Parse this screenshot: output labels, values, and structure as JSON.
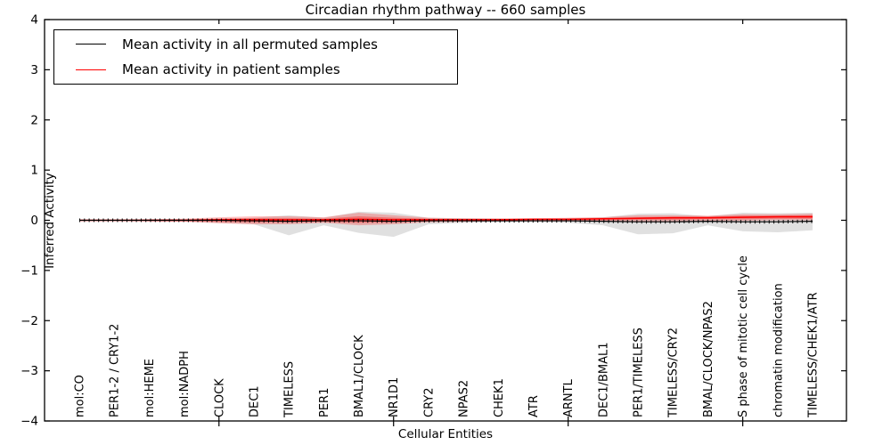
{
  "chart_data": {
    "type": "line",
    "title": "Circadian rhythm pathway -- 660 samples",
    "xlabel": "Cellular Entities",
    "ylabel": "Inferred Activity",
    "ylim": [
      -4,
      4
    ],
    "grid": false,
    "yticks": [
      {
        "value": 4,
        "label": "4"
      },
      {
        "value": 3,
        "label": "3"
      },
      {
        "value": 2,
        "label": "2"
      },
      {
        "value": 1,
        "label": "1"
      },
      {
        "value": 0,
        "label": "0"
      },
      {
        "value": -1,
        "label": "−1"
      },
      {
        "value": -2,
        "label": "−2"
      },
      {
        "value": -3,
        "label": "−3"
      },
      {
        "value": -4,
        "label": "−4"
      }
    ],
    "categories": [
      "mol:CO",
      "PER1-2 / CRY1-2",
      "mol:HEME",
      "mol:NADPH",
      "CLOCK",
      "DEC1",
      "TIMELESS",
      "PER1",
      "BMAL1/CLOCK",
      "NR1D1",
      "CRY2",
      "NPAS2",
      "CHEK1",
      "ATR",
      "ARNTL",
      "DEC1/BMAL1",
      "PER1/TIMELESS",
      "TIMELESS/CRY2",
      "BMAL/CLOCK/NPAS2",
      "S phase of mitotic cell cycle",
      "chromatin modification",
      "TIMELESS/CHEK1/ATR"
    ],
    "x_major_tick_indices": [
      4,
      9,
      14,
      19
    ],
    "series": [
      {
        "name": "Mean activity in all permuted samples",
        "color": "#000000",
        "values": [
          0,
          0,
          0,
          0,
          0,
          -0.01,
          -0.02,
          -0.01,
          -0.01,
          -0.02,
          -0.01,
          -0.01,
          -0.01,
          -0.01,
          -0.01,
          -0.02,
          -0.03,
          -0.03,
          -0.02,
          -0.03,
          -0.03,
          -0.02
        ]
      },
      {
        "name": "Mean activity in patient samples",
        "color": "#ff0000",
        "values": [
          0,
          0,
          0,
          0,
          0.01,
          0.01,
          0.01,
          0.01,
          0.02,
          0.01,
          0.01,
          0.01,
          0.01,
          0.02,
          0.02,
          0.03,
          0.04,
          0.05,
          0.05,
          0.06,
          0.07,
          0.07
        ]
      }
    ],
    "bands": [
      {
        "name": "permuted-samples-spread",
        "color": "rgba(130,130,130,0.25)",
        "upper": [
          0.01,
          0.01,
          0.02,
          0.02,
          0.03,
          0.05,
          0.1,
          0.05,
          0.17,
          0.15,
          0.05,
          0.04,
          0.03,
          0.03,
          0.04,
          0.06,
          0.13,
          0.14,
          0.08,
          0.15,
          0.14,
          0.15
        ],
        "lower": [
          -0.01,
          -0.01,
          -0.02,
          -0.02,
          -0.05,
          -0.08,
          -0.3,
          -0.1,
          -0.25,
          -0.33,
          -0.08,
          -0.05,
          -0.04,
          -0.04,
          -0.05,
          -0.1,
          -0.28,
          -0.26,
          -0.1,
          -0.22,
          -0.24,
          -0.2
        ]
      },
      {
        "name": "patient-samples-spread-outer",
        "color": "rgba(255,0,0,0.24)",
        "upper": [
          0.01,
          0.01,
          0.02,
          0.03,
          0.06,
          0.08,
          0.08,
          0.06,
          0.15,
          0.1,
          0.05,
          0.04,
          0.04,
          0.04,
          0.05,
          0.06,
          0.1,
          0.1,
          0.09,
          0.12,
          0.12,
          0.13
        ],
        "lower": [
          -0.01,
          -0.01,
          -0.02,
          -0.03,
          -0.06,
          -0.08,
          -0.08,
          -0.05,
          -0.1,
          -0.08,
          -0.04,
          -0.03,
          -0.02,
          -0.02,
          -0.02,
          -0.02,
          -0.03,
          -0.02,
          -0.01,
          -0.01,
          0.0,
          0.0
        ]
      },
      {
        "name": "patient-samples-spread-inner",
        "color": "rgba(255,0,0,0.32)",
        "upper": [
          0.005,
          0.005,
          0.01,
          0.015,
          0.03,
          0.04,
          0.04,
          0.03,
          0.08,
          0.05,
          0.03,
          0.02,
          0.02,
          0.03,
          0.03,
          0.04,
          0.06,
          0.07,
          0.07,
          0.09,
          0.09,
          0.1
        ],
        "lower": [
          -0.005,
          -0.005,
          -0.01,
          -0.015,
          -0.03,
          -0.04,
          -0.04,
          -0.03,
          -0.05,
          -0.04,
          -0.02,
          -0.01,
          -0.01,
          0.0,
          0.0,
          0.0,
          0.01,
          0.01,
          0.02,
          0.02,
          0.03,
          0.03
        ]
      }
    ],
    "legend": {
      "position": "upper-left",
      "entries": [
        {
          "label": "Mean activity in all permuted samples",
          "color": "#000000"
        },
        {
          "label": "Mean activity in patient samples",
          "color": "#ff0000"
        }
      ]
    }
  }
}
